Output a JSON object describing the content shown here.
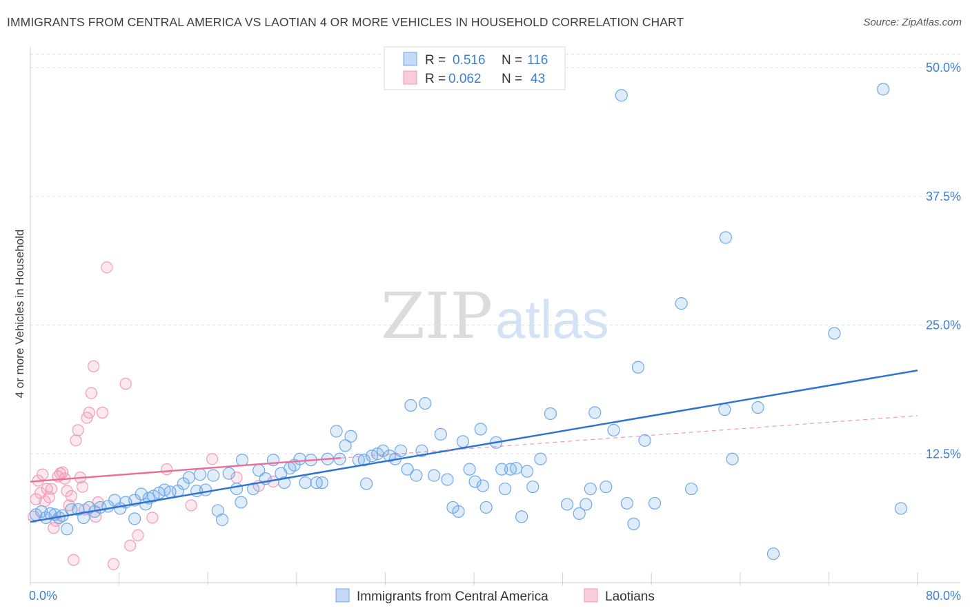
{
  "title": "IMMIGRANTS FROM CENTRAL AMERICA VS LAOTIAN 4 OR MORE VEHICLES IN HOUSEHOLD CORRELATION CHART",
  "source": "Source: ZipAtlas.com",
  "watermark": {
    "zip": "ZIP",
    "atlas": "atlas"
  },
  "colors": {
    "blue": "#6fa8e8",
    "blue_line": "#2f74d0",
    "pink": "#f29ab6",
    "pink_line": "#e8709a",
    "axis_text": "#3f7fcf"
  },
  "legend_top": [
    {
      "r_label": "R = ",
      "r_value": "0.516",
      "n_label": "N = ",
      "n_value": "116"
    },
    {
      "r_label": "R = ",
      "r_value": "0.062",
      "n_label": "N = ",
      "n_value": "43"
    }
  ],
  "legend_bottom": [
    "Immigrants from Central America",
    "Laotians"
  ],
  "chart_data": {
    "type": "scatter",
    "ylabel": "4 or more Vehicles in Household",
    "xlim": [
      0,
      80
    ],
    "ylim": [
      0,
      50
    ],
    "x_tick_labels": [
      "0.0%",
      "80.0%"
    ],
    "y_tick_labels": [
      {
        "v": 12.5,
        "label": "12.5%"
      },
      {
        "v": 25.0,
        "label": "25.0%"
      },
      {
        "v": 37.5,
        "label": "37.5%"
      },
      {
        "v": 50.0,
        "label": "50.0%"
      }
    ],
    "grid": true,
    "legend_placement": "top-center",
    "series": [
      {
        "name": "Immigrants from Central America",
        "color": "#6fa8e8",
        "trend": {
          "x0": 0,
          "y0": 5.9,
          "x1": 80,
          "y1": 20.6
        },
        "points": [
          [
            0.5,
            6.6
          ],
          [
            1.0,
            6.9
          ],
          [
            1.4,
            6.3
          ],
          [
            1.8,
            6.7
          ],
          [
            2.2,
            6.6
          ],
          [
            2.6,
            6.3
          ],
          [
            2.9,
            6.5
          ],
          [
            3.3,
            5.2
          ],
          [
            3.7,
            7.1
          ],
          [
            4.3,
            7.1
          ],
          [
            4.8,
            6.3
          ],
          [
            5.3,
            7.3
          ],
          [
            5.8,
            6.9
          ],
          [
            6.3,
            7.3
          ],
          [
            7.0,
            7.4
          ],
          [
            7.6,
            8.0
          ],
          [
            8.1,
            7.2
          ],
          [
            8.6,
            7.8
          ],
          [
            9.4,
            6.2
          ],
          [
            9.4,
            8.0
          ],
          [
            10.0,
            8.6
          ],
          [
            10.4,
            7.6
          ],
          [
            10.7,
            8.2
          ],
          [
            11.1,
            8.4
          ],
          [
            11.6,
            8.7
          ],
          [
            12.1,
            9.0
          ],
          [
            12.6,
            8.8
          ],
          [
            13.3,
            8.9
          ],
          [
            13.8,
            9.6
          ],
          [
            14.3,
            10.2
          ],
          [
            15.0,
            8.9
          ],
          [
            15.3,
            10.5
          ],
          [
            15.8,
            9.0
          ],
          [
            16.5,
            10.4
          ],
          [
            16.9,
            7.0
          ],
          [
            17.3,
            6.1
          ],
          [
            17.9,
            10.6
          ],
          [
            18.6,
            9.1
          ],
          [
            19.0,
            7.8
          ],
          [
            19.1,
            11.9
          ],
          [
            20.1,
            9.1
          ],
          [
            20.6,
            10.9
          ],
          [
            21.2,
            10.1
          ],
          [
            21.9,
            11.9
          ],
          [
            22.6,
            10.6
          ],
          [
            22.9,
            9.7
          ],
          [
            23.4,
            11.1
          ],
          [
            23.8,
            11.4
          ],
          [
            24.3,
            12.0
          ],
          [
            24.8,
            9.7
          ],
          [
            25.3,
            11.9
          ],
          [
            25.8,
            9.7
          ],
          [
            26.3,
            9.7
          ],
          [
            26.8,
            12.0
          ],
          [
            27.6,
            14.7
          ],
          [
            27.9,
            12.0
          ],
          [
            28.4,
            13.3
          ],
          [
            28.9,
            14.2
          ],
          [
            29.6,
            11.9
          ],
          [
            30.1,
            11.9
          ],
          [
            30.3,
            9.6
          ],
          [
            30.8,
            12.3
          ],
          [
            31.3,
            12.5
          ],
          [
            31.8,
            12.8
          ],
          [
            32.4,
            12.3
          ],
          [
            32.9,
            12.0
          ],
          [
            33.4,
            12.8
          ],
          [
            34.0,
            11.0
          ],
          [
            34.3,
            17.2
          ],
          [
            34.8,
            10.4
          ],
          [
            35.3,
            12.8
          ],
          [
            35.6,
            17.4
          ],
          [
            36.4,
            10.4
          ],
          [
            37.0,
            14.4
          ],
          [
            37.6,
            10.0
          ],
          [
            38.1,
            7.3
          ],
          [
            38.6,
            6.9
          ],
          [
            39.0,
            13.7
          ],
          [
            39.6,
            11.0
          ],
          [
            40.1,
            9.8
          ],
          [
            40.6,
            14.9
          ],
          [
            40.8,
            9.4
          ],
          [
            41.1,
            7.3
          ],
          [
            42.0,
            13.6
          ],
          [
            42.5,
            11.0
          ],
          [
            42.8,
            9.1
          ],
          [
            43.3,
            11.0
          ],
          [
            43.8,
            11.1
          ],
          [
            44.3,
            6.4
          ],
          [
            44.8,
            10.8
          ],
          [
            45.3,
            9.3
          ],
          [
            46.0,
            12.0
          ],
          [
            46.9,
            16.4
          ],
          [
            48.4,
            7.6
          ],
          [
            49.5,
            6.7
          ],
          [
            50.1,
            7.6
          ],
          [
            50.5,
            9.1
          ],
          [
            50.9,
            16.5
          ],
          [
            51.9,
            9.3
          ],
          [
            52.6,
            14.8
          ],
          [
            53.3,
            47.3
          ],
          [
            53.8,
            7.7
          ],
          [
            54.4,
            5.7
          ],
          [
            54.8,
            20.9
          ],
          [
            55.4,
            13.8
          ],
          [
            56.3,
            7.7
          ],
          [
            58.7,
            27.1
          ],
          [
            59.6,
            9.1
          ],
          [
            62.7,
            33.5
          ],
          [
            62.6,
            16.8
          ],
          [
            63.3,
            12.0
          ],
          [
            65.6,
            17.0
          ],
          [
            67.0,
            2.8
          ],
          [
            72.5,
            24.2
          ],
          [
            76.9,
            47.9
          ],
          [
            78.5,
            7.2
          ]
        ]
      },
      {
        "name": "Laotians",
        "color": "#f29ab6",
        "trend": {
          "x0": 0,
          "y0": 9.8,
          "x1": 28,
          "y1": 12.1
        },
        "trend_ext": {
          "x0": 28,
          "y0": 12.1,
          "x1": 80,
          "y1": 16.2
        },
        "points": [
          [
            0.3,
            6.4
          ],
          [
            0.5,
            8.1
          ],
          [
            0.7,
            9.9
          ],
          [
            0.9,
            8.7
          ],
          [
            1.1,
            10.5
          ],
          [
            1.3,
            7.9
          ],
          [
            1.5,
            9.1
          ],
          [
            1.7,
            8.3
          ],
          [
            1.9,
            9.1
          ],
          [
            2.1,
            5.3
          ],
          [
            2.3,
            6.0
          ],
          [
            2.5,
            10.3
          ],
          [
            2.7,
            10.6
          ],
          [
            2.9,
            10.7
          ],
          [
            3.1,
            10.1
          ],
          [
            3.3,
            8.9
          ],
          [
            3.5,
            7.5
          ],
          [
            3.7,
            8.4
          ],
          [
            3.9,
            2.2
          ],
          [
            4.1,
            13.8
          ],
          [
            4.3,
            14.8
          ],
          [
            4.5,
            10.2
          ],
          [
            4.7,
            9.3
          ],
          [
            4.9,
            7.1
          ],
          [
            5.1,
            16.0
          ],
          [
            5.3,
            16.5
          ],
          [
            5.5,
            18.4
          ],
          [
            5.7,
            21.0
          ],
          [
            5.9,
            6.4
          ],
          [
            6.1,
            7.8
          ],
          [
            6.5,
            16.5
          ],
          [
            6.9,
            30.6
          ],
          [
            7.5,
            1.8
          ],
          [
            8.6,
            19.3
          ],
          [
            9.0,
            3.6
          ],
          [
            9.7,
            4.6
          ],
          [
            11.0,
            6.3
          ],
          [
            12.3,
            11.0
          ],
          [
            14.5,
            7.5
          ],
          [
            16.4,
            12.0
          ],
          [
            18.6,
            10.2
          ],
          [
            20.6,
            9.4
          ],
          [
            21.9,
            9.8
          ]
        ]
      }
    ]
  }
}
